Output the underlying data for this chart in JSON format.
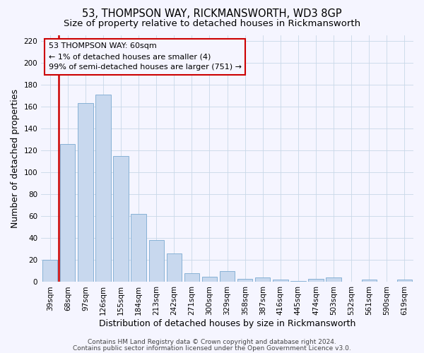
{
  "title": "53, THOMPSON WAY, RICKMANSWORTH, WD3 8GP",
  "subtitle": "Size of property relative to detached houses in Rickmansworth",
  "xlabel": "Distribution of detached houses by size in Rickmansworth",
  "ylabel": "Number of detached properties",
  "categories": [
    "39sqm",
    "68sqm",
    "97sqm",
    "126sqm",
    "155sqm",
    "184sqm",
    "213sqm",
    "242sqm",
    "271sqm",
    "300sqm",
    "329sqm",
    "358sqm",
    "387sqm",
    "416sqm",
    "445sqm",
    "474sqm",
    "503sqm",
    "532sqm",
    "561sqm",
    "590sqm",
    "619sqm"
  ],
  "values": [
    20,
    126,
    163,
    171,
    115,
    62,
    38,
    26,
    8,
    5,
    10,
    3,
    4,
    2,
    1,
    3,
    4,
    0,
    2,
    0,
    2
  ],
  "bar_color": "#c8d8ee",
  "bar_edge_color": "#7aaad0",
  "highlight_edge_color": "#cc0000",
  "annotation_box_text": "53 THOMPSON WAY: 60sqm\n← 1% of detached houses are smaller (4)\n99% of semi-detached houses are larger (751) →",
  "annotation_box_color": "#cc0000",
  "ylim": [
    0,
    225
  ],
  "yticks": [
    0,
    20,
    40,
    60,
    80,
    100,
    120,
    140,
    160,
    180,
    200,
    220
  ],
  "footer_line1": "Contains HM Land Registry data © Crown copyright and database right 2024.",
  "footer_line2": "Contains public sector information licensed under the Open Government Licence v3.0.",
  "bg_color": "#f5f5ff",
  "grid_color": "#c8d8e8",
  "title_fontsize": 10.5,
  "subtitle_fontsize": 9.5,
  "axis_label_fontsize": 9,
  "tick_fontsize": 7.5,
  "footer_fontsize": 6.5,
  "red_line_x": 0.5
}
